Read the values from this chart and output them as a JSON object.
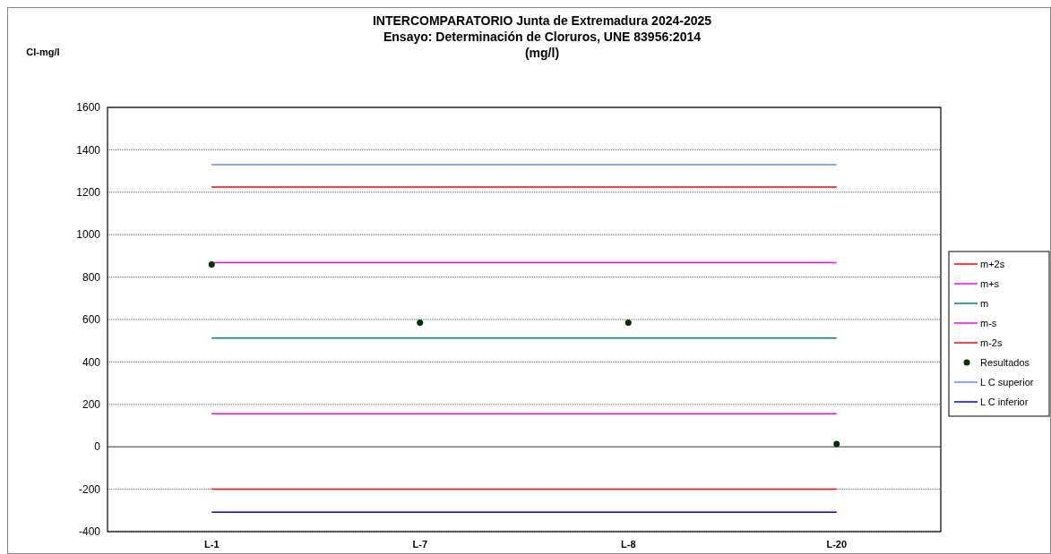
{
  "chart_data": {
    "type": "line",
    "title": "INTERCOMPARATORIO Junta de Extremadura 2024-2025\nEnsayo: Determinación de Cloruros, UNE 83956:2014\n(mg/l)",
    "ylabel": "Cl-mg/l",
    "categories": [
      "L-1",
      "L-7",
      "L-8",
      "L-20"
    ],
    "ylim": [
      -400,
      1600
    ],
    "yticks": [
      -400,
      -200,
      0,
      200,
      400,
      600,
      800,
      1000,
      1200,
      1400,
      1600
    ],
    "grid": "y",
    "legend": "right",
    "series": [
      {
        "name": "m+2s",
        "color": "#ff0000",
        "values": [
          1224,
          1224,
          1224,
          1224
        ]
      },
      {
        "name": "m+s",
        "color": "#ff00ff",
        "values": [
          868,
          868,
          868,
          868
        ]
      },
      {
        "name": "m",
        "color": "#008080",
        "values": [
          512,
          512,
          512,
          512
        ]
      },
      {
        "name": "m-s",
        "color": "#ff00ff",
        "values": [
          156,
          156,
          156,
          156
        ]
      },
      {
        "name": "m-2s",
        "color": "#ff0000",
        "values": [
          -200,
          -200,
          -200,
          -200
        ]
      },
      {
        "name": "Resultados",
        "type": "scatter",
        "marker": "circle",
        "color": "#003300",
        "values": [
          860,
          585,
          585,
          14
        ]
      },
      {
        "name": "L C superior",
        "color": "#6688ff",
        "values": [
          1330,
          1330,
          1330,
          1330
        ]
      },
      {
        "name": "L C inferior",
        "color": "#0000ff",
        "values": [
          -308,
          -308,
          -308,
          -308
        ]
      }
    ]
  }
}
